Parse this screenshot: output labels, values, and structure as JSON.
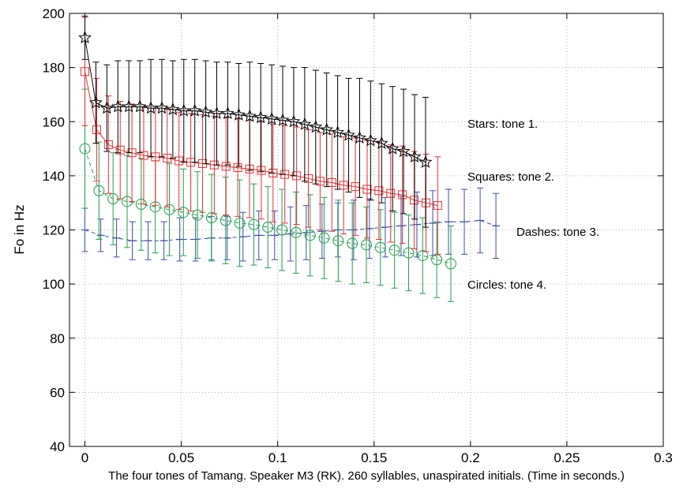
{
  "chart_data": {
    "type": "errorbar",
    "ylabel": "Fo in Hz",
    "xlabel": "The four tones of Tamang. Speaker M3 (RK). 260 syllables, unaspirated initials. (Time in seconds.)",
    "xlim": [
      -0.008,
      0.3
    ],
    "xticks": [
      0,
      0.05,
      0.1,
      0.15,
      0.2,
      0.25,
      0.3
    ],
    "ylim": [
      40,
      200
    ],
    "yticks": [
      40,
      60,
      80,
      100,
      120,
      140,
      160,
      180,
      200
    ],
    "grid": true,
    "annotations": [
      "Stars: tone 1.",
      "Squares: tone 2.",
      "Dashes: tone 3.",
      "Circles: tone 4."
    ],
    "series": [
      {
        "name": "tone 1",
        "marker": "star",
        "color": "#000000",
        "dashed": false,
        "x": [
          0,
          0.0057,
          0.0114,
          0.0171,
          0.0228,
          0.0285,
          0.0342,
          0.0399,
          0.0456,
          0.0513,
          0.057,
          0.0627,
          0.0684,
          0.0741,
          0.0798,
          0.0855,
          0.0912,
          0.0969,
          0.1026,
          0.1083,
          0.114,
          0.1197,
          0.1254,
          0.1311,
          0.1368,
          0.1425,
          0.1482,
          0.1539,
          0.1596,
          0.1653,
          0.171,
          0.1767
        ],
        "values": [
          191,
          167,
          165,
          165.5,
          165.5,
          165.5,
          165,
          165,
          164.5,
          164,
          164,
          163.5,
          163,
          163,
          162.5,
          162,
          161.5,
          161,
          160.5,
          160,
          159,
          158,
          157,
          156,
          155,
          154,
          153,
          152,
          150,
          149,
          147,
          145
        ],
        "errors": [
          8,
          15,
          16,
          17,
          17,
          17,
          18,
          18,
          18,
          19,
          19,
          19,
          19,
          19,
          19,
          20,
          20,
          20,
          20,
          20,
          21,
          21,
          21,
          21,
          21,
          22,
          22,
          22,
          23,
          23,
          23,
          24
        ]
      },
      {
        "name": "tone 2",
        "marker": "square",
        "color": "#e8312f",
        "dashed": false,
        "x": [
          0,
          0.0061,
          0.0122,
          0.0183,
          0.0244,
          0.0305,
          0.0366,
          0.0427,
          0.0488,
          0.0549,
          0.061,
          0.0671,
          0.0732,
          0.0793,
          0.0854,
          0.0915,
          0.0976,
          0.1037,
          0.1098,
          0.1159,
          0.122,
          0.1281,
          0.1342,
          0.1403,
          0.1464,
          0.1525,
          0.1586,
          0.1647,
          0.1708,
          0.1769,
          0.183
        ],
        "values": [
          178.5,
          157,
          151.5,
          149.5,
          148.5,
          147.5,
          147,
          146.5,
          145.5,
          145,
          144.5,
          144,
          143.5,
          143,
          142.5,
          142,
          141,
          140.5,
          140,
          139,
          138,
          137.5,
          136.5,
          136,
          135,
          134.5,
          133.5,
          133,
          131,
          130,
          129
        ],
        "errors": [
          20,
          19,
          18,
          18,
          18,
          18,
          18,
          18,
          18,
          18,
          18,
          18,
          18,
          18,
          18,
          18,
          18,
          18,
          18,
          18,
          18,
          18,
          18,
          18,
          18,
          18,
          18,
          18,
          18,
          18,
          18
        ]
      },
      {
        "name": "tone 3",
        "marker": "dash",
        "color": "#3b4fa8",
        "dashed": true,
        "x": [
          0,
          0.0082,
          0.0164,
          0.0246,
          0.0328,
          0.041,
          0.0492,
          0.0574,
          0.0656,
          0.0738,
          0.082,
          0.0902,
          0.0984,
          0.1066,
          0.1148,
          0.123,
          0.1312,
          0.1394,
          0.1476,
          0.1558,
          0.164,
          0.1722,
          0.1804,
          0.1886,
          0.1968,
          0.205,
          0.2132
        ],
        "values": [
          120,
          118,
          117,
          116,
          116,
          116,
          116.5,
          116.5,
          117,
          117,
          117.5,
          118,
          118,
          118.5,
          119,
          119.5,
          120,
          120,
          120.5,
          121,
          121.5,
          122,
          122.5,
          123,
          123,
          123.5,
          121.5
        ],
        "errors": [
          8,
          6,
          7,
          7,
          7,
          7,
          8,
          8,
          8,
          8,
          9,
          9,
          9,
          10,
          10,
          10,
          10,
          11,
          11,
          11,
          11,
          12,
          12,
          12,
          12,
          12,
          12
        ]
      },
      {
        "name": "tone 4",
        "marker": "circle",
        "color": "#1f9e4a",
        "dashed": true,
        "x": [
          0,
          0.0073,
          0.0146,
          0.0219,
          0.0292,
          0.0365,
          0.0438,
          0.0511,
          0.0584,
          0.0657,
          0.073,
          0.0803,
          0.0876,
          0.0949,
          0.1022,
          0.1095,
          0.1168,
          0.1241,
          0.1314,
          0.1387,
          0.146,
          0.1533,
          0.1606,
          0.1679,
          0.1752,
          0.1825,
          0.1898
        ],
        "values": [
          150,
          134.5,
          131.5,
          130.5,
          129.5,
          128.5,
          127.5,
          126.5,
          125.5,
          124.5,
          123.5,
          122.5,
          122,
          121,
          120,
          119,
          118,
          117,
          116,
          115,
          114.5,
          113.5,
          112.5,
          111.5,
          110.5,
          109,
          107.5
        ],
        "errors": [
          22,
          18,
          17,
          17,
          17,
          17,
          17,
          16,
          16,
          16,
          16,
          16,
          15,
          15,
          15,
          15,
          15,
          15,
          15,
          15,
          14,
          14,
          14,
          14,
          14,
          14,
          14
        ]
      }
    ]
  }
}
